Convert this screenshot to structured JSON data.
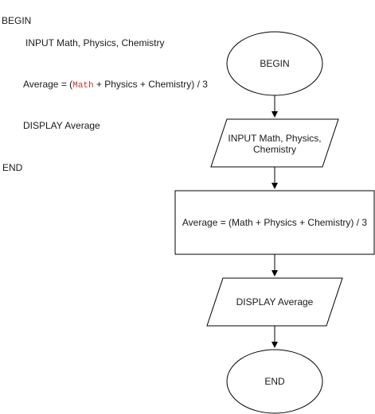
{
  "pseudocode": {
    "begin": "BEGIN",
    "input": "INPUT Math, Physics, Chemistry",
    "average_prefix": "Average = (",
    "average_code_token": "Math",
    "average_suffix": " + Physics + Chemistry) / 3",
    "display": "DISPLAY Average",
    "end": "END"
  },
  "flowchart": {
    "start_label": "BEGIN",
    "input_label_line1": "INPUT Math, Physics,",
    "input_label_line2": "Chemistry",
    "process_label": "Average = (Math + Physics + Chemistry) / 3",
    "output_label": "DISPLAY Average",
    "end_label": "END"
  },
  "colors": {
    "stroke": "#000000",
    "code_token": "#c0392b"
  }
}
